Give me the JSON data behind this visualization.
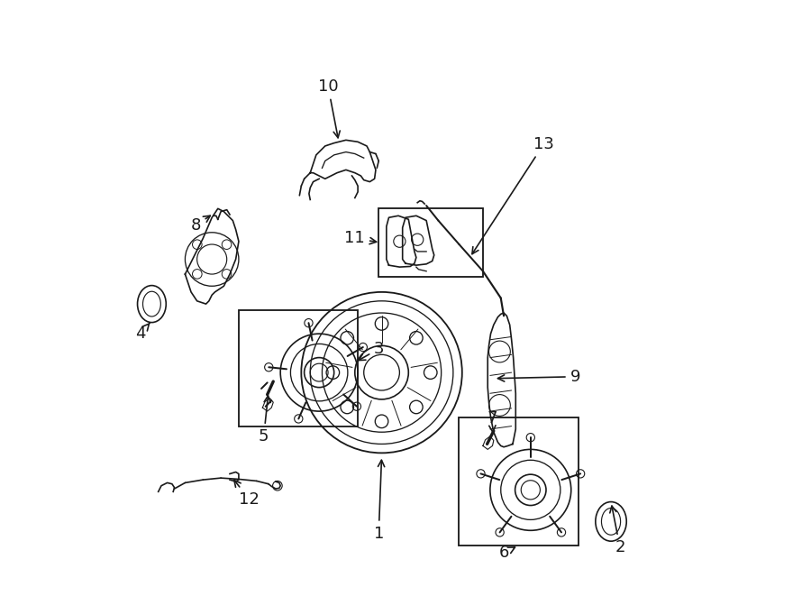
{
  "bg_color": "#ffffff",
  "line_color": "#1a1a1a",
  "line_width": 1.2,
  "label_fontsize": 13,
  "fig_width": 9.0,
  "fig_height": 6.61
}
